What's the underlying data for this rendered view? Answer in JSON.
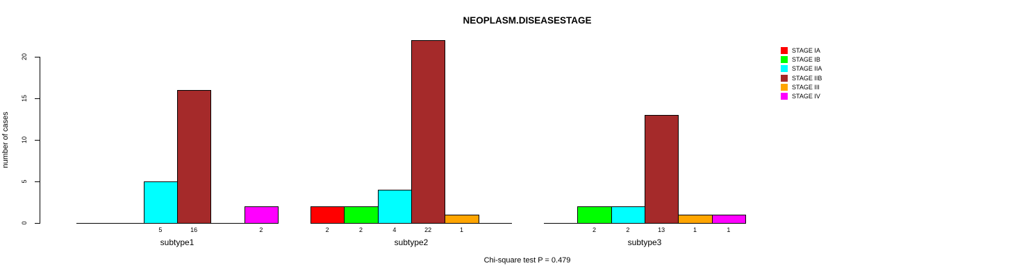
{
  "chart_data": {
    "type": "bar",
    "title": "NEOPLASM.DISEASESTAGE",
    "ylabel": "number of cases",
    "xlabel": "",
    "yticks": [
      0,
      5,
      10,
      15,
      20
    ],
    "ylim": [
      0,
      22
    ],
    "grid": false,
    "legend_position": "right",
    "categories": [
      "STAGE IA",
      "STAGE IB",
      "STAGE IIA",
      "STAGE IIB",
      "STAGE III",
      "STAGE IV"
    ],
    "colors": [
      "#FF0000",
      "#00FF00",
      "#00FFFF",
      "#A52A2A",
      "#FFA500",
      "#FF00FF"
    ],
    "groups": [
      {
        "label": "subtype1",
        "values": [
          0,
          0,
          5,
          16,
          0,
          2
        ]
      },
      {
        "label": "subtype2",
        "values": [
          2,
          2,
          4,
          22,
          1,
          0
        ]
      },
      {
        "label": "subtype3",
        "values": [
          0,
          2,
          2,
          13,
          1,
          1
        ]
      }
    ],
    "legend": [
      {
        "label": "STAGE IA",
        "color": "#FF0000"
      },
      {
        "label": "STAGE IB",
        "color": "#00FF00"
      },
      {
        "label": "STAGE IIA",
        "color": "#00FFFF"
      },
      {
        "label": "STAGE IIB",
        "color": "#A52A2A"
      },
      {
        "label": "STAGE III",
        "color": "#FFA500"
      },
      {
        "label": "STAGE IV",
        "color": "#FF00FF"
      }
    ],
    "caption": "Chi-square test P = 0.479"
  }
}
